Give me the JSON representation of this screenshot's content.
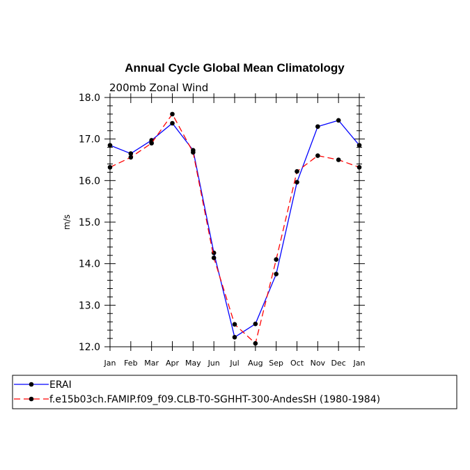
{
  "chart_data": {
    "type": "line",
    "title": "Annual Cycle Global Mean Climatology",
    "subtitle": "200mb Zonal Wind",
    "xlabel": "",
    "ylabel": "m/s",
    "categories": [
      "Jan",
      "Feb",
      "Mar",
      "Apr",
      "May",
      "Jun",
      "Jul",
      "Aug",
      "Sep",
      "Oct",
      "Nov",
      "Dec",
      "Jan"
    ],
    "ylim": [
      12.0,
      18.0
    ],
    "yticks": [
      "12.0",
      "13.0",
      "14.0",
      "15.0",
      "16.0",
      "17.0",
      "18.0"
    ],
    "series": [
      {
        "name": "ERAI",
        "color": "#0000ff",
        "dash": "solid",
        "values": [
          16.85,
          16.65,
          16.97,
          17.38,
          16.73,
          14.26,
          12.23,
          12.55,
          13.75,
          15.96,
          17.3,
          17.45,
          16.85
        ]
      },
      {
        "name": "f.e15b03ch.FAMIP.f09_f09.CLB-T0-SGHHT-300-AndesSH (1980-1984)",
        "color": "#ff0000",
        "dash": "dashed",
        "values": [
          16.32,
          16.56,
          16.9,
          17.6,
          16.68,
          14.14,
          12.54,
          12.08,
          14.1,
          16.22,
          16.6,
          16.5,
          16.32
        ]
      }
    ],
    "legend_position": "bottom"
  }
}
